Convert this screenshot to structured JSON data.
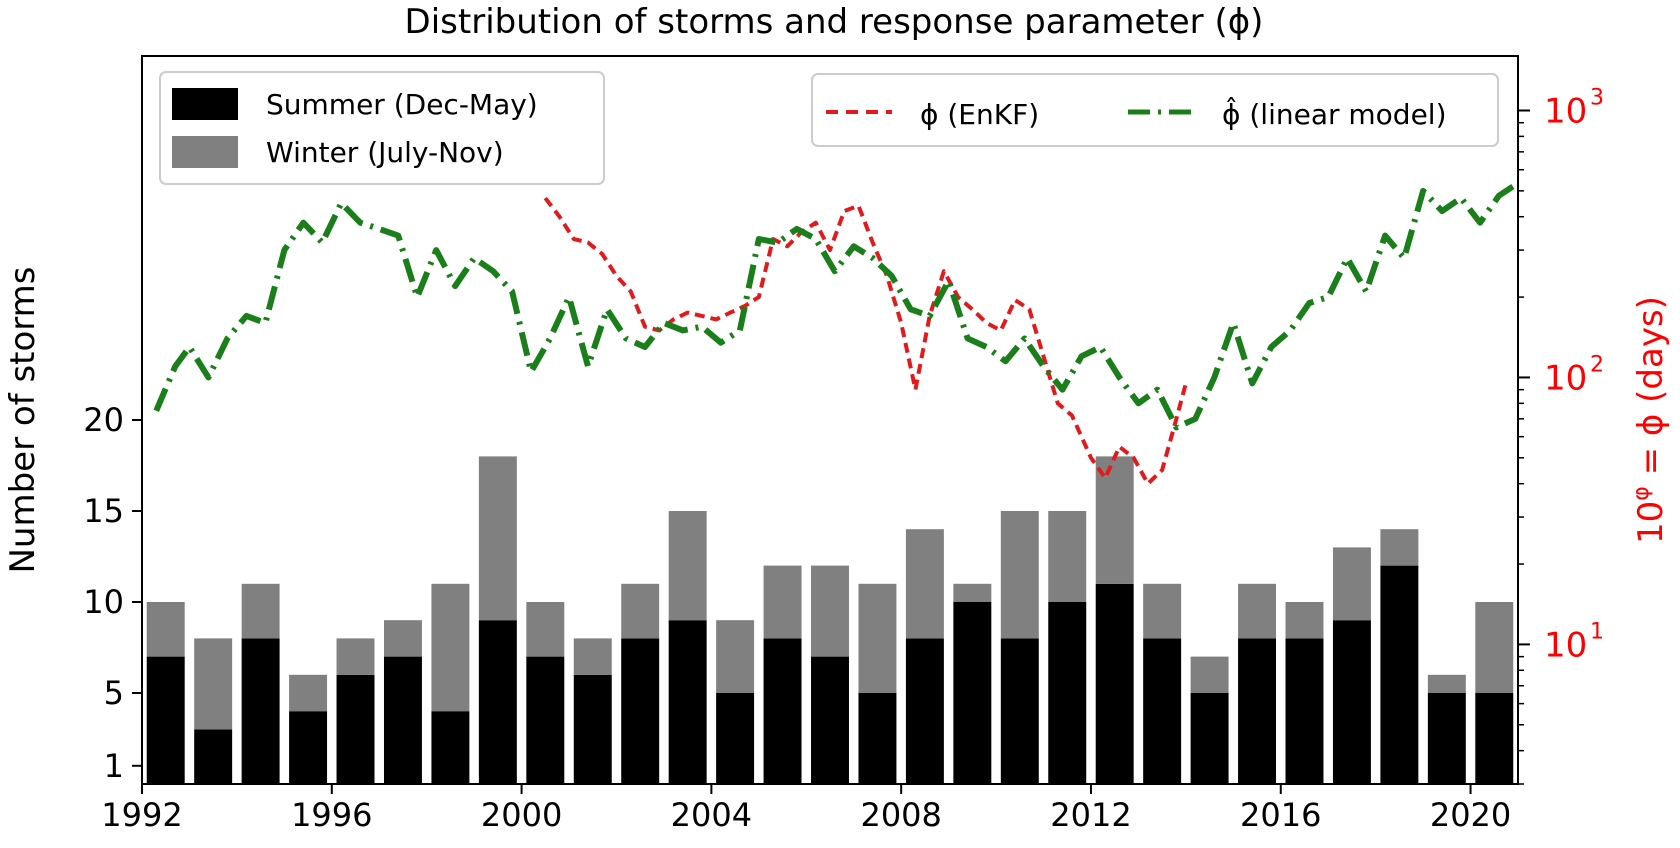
{
  "chart_data": {
    "type": "bar",
    "title": "Distribution of storms and response parameter (ϕ)",
    "ylabel": "Number of storms",
    "y2label": "10^φ = ϕ (days)",
    "x_ticks": [
      "1992",
      "1996",
      "2000",
      "2004",
      "2008",
      "2012",
      "2016",
      "2020"
    ],
    "y_ticks": [
      "1",
      "5",
      "10",
      "15",
      "20"
    ],
    "y2_ticks": [
      "10",
      "10",
      "10"
    ],
    "y2_tick_exponents": [
      "1",
      "2",
      "3"
    ],
    "y_axis_range": [
      0,
      40
    ],
    "y2_axis_range_log": [
      3,
      1600
    ],
    "x_range": [
      1992,
      2021
    ],
    "colors": {
      "summer": "#000000",
      "winter": "#808080",
      "enkf": "#e31a1c",
      "linear": "#1a7f1a",
      "right_axis": "#ff0000"
    },
    "categories": [
      1992,
      1993,
      1994,
      1995,
      1996,
      1997,
      1998,
      1999,
      2000,
      2001,
      2002,
      2003,
      2004,
      2005,
      2006,
      2007,
      2008,
      2009,
      2010,
      2011,
      2012,
      2013,
      2014,
      2015,
      2016,
      2017,
      2018,
      2019,
      2020
    ],
    "series": [
      {
        "name": "Summer (Dec-May)",
        "values": [
          7,
          3,
          8,
          4,
          6,
          7,
          4,
          9,
          7,
          6,
          8,
          9,
          5,
          8,
          7,
          5,
          8,
          10,
          8,
          10,
          11,
          8,
          5,
          8,
          8,
          9,
          12,
          5,
          5
        ]
      },
      {
        "name": "Winter (July-Nov)",
        "values": [
          3,
          5,
          3,
          2,
          2,
          2,
          7,
          9,
          3,
          2,
          3,
          6,
          4,
          4,
          5,
          6,
          6,
          1,
          7,
          5,
          7,
          3,
          2,
          3,
          2,
          4,
          2,
          1,
          5
        ]
      }
    ],
    "line_series": [
      {
        "name": "ϕ (EnKF)",
        "x": [
          2000.5,
          2000.8,
          2001.1,
          2001.4,
          2001.7,
          2002.0,
          2002.3,
          2002.6,
          2002.9,
          2003.2,
          2003.5,
          2003.8,
          2004.1,
          2004.4,
          2004.7,
          2005.0,
          2005.3,
          2005.6,
          2005.9,
          2006.2,
          2006.5,
          2006.8,
          2007.1,
          2007.4,
          2007.7,
          2008.0,
          2008.3,
          2008.6,
          2008.9,
          2009.2,
          2009.5,
          2009.8,
          2010.1,
          2010.4,
          2010.7,
          2011.0,
          2011.3,
          2011.6,
          2012.0,
          2012.3,
          2012.6,
          2012.9,
          2013.2,
          2013.5,
          2013.8,
          2014.0
        ],
        "y": [
          470,
          400,
          330,
          320,
          290,
          240,
          210,
          155,
          150,
          165,
          175,
          170,
          165,
          175,
          185,
          200,
          330,
          310,
          350,
          380,
          300,
          420,
          440,
          320,
          240,
          160,
          90,
          170,
          250,
          200,
          180,
          160,
          150,
          195,
          180,
          120,
          80,
          72,
          50,
          42,
          55,
          50,
          40,
          45,
          70,
          95
        ]
      },
      {
        "name": "ϕ̂ (linear model)",
        "x": [
          1992.3,
          1992.7,
          1993.0,
          1993.4,
          1993.8,
          1994.2,
          1994.6,
          1995.0,
          1995.4,
          1995.8,
          1996.2,
          1996.6,
          1997.0,
          1997.4,
          1997.8,
          1998.2,
          1998.6,
          1999.0,
          1999.4,
          1999.8,
          2000.2,
          2000.6,
          2001.0,
          2001.4,
          2001.8,
          2002.2,
          2002.6,
          2003.0,
          2003.4,
          2003.8,
          2004.2,
          2004.6,
          2005.0,
          2005.4,
          2005.8,
          2006.2,
          2006.6,
          2007.0,
          2007.4,
          2007.8,
          2008.2,
          2008.6,
          2009.0,
          2009.4,
          2009.8,
          2010.2,
          2010.6,
          2011.0,
          2011.4,
          2011.8,
          2012.2,
          2012.6,
          2013.0,
          2013.4,
          2013.8,
          2014.2,
          2014.6,
          2015.0,
          2015.4,
          2015.8,
          2016.2,
          2016.6,
          2017.0,
          2017.4,
          2017.8,
          2018.2,
          2018.6,
          2019.0,
          2019.4,
          2019.8,
          2020.2,
          2020.6,
          2020.9
        ],
        "y": [
          75,
          110,
          130,
          100,
          140,
          170,
          160,
          300,
          380,
          320,
          450,
          380,
          360,
          340,
          200,
          300,
          220,
          280,
          250,
          210,
          105,
          140,
          200,
          110,
          180,
          140,
          130,
          160,
          150,
          155,
          135,
          150,
          330,
          320,
          360,
          330,
          250,
          310,
          280,
          240,
          180,
          170,
          230,
          140,
          130,
          115,
          140,
          110,
          90,
          120,
          130,
          100,
          80,
          90,
          65,
          70,
          100,
          160,
          95,
          130,
          150,
          190,
          200,
          280,
          210,
          340,
          280,
          500,
          420,
          470,
          380,
          480,
          520
        ]
      }
    ]
  }
}
